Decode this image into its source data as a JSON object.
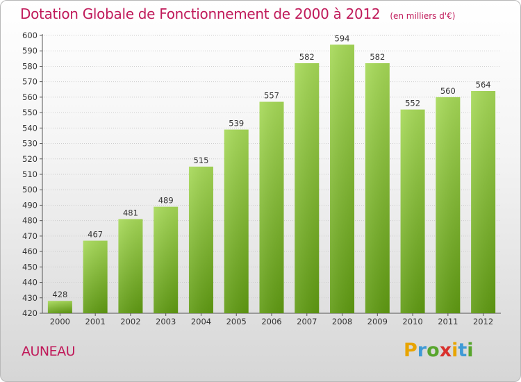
{
  "header": {
    "title": "Dotation Globale de Fonctionnement de 2000 à 2012",
    "unit": "(en milliers d'€)"
  },
  "commune": "AUNEAU",
  "logo": {
    "letters": [
      "P",
      "r",
      "o",
      "x",
      "i",
      "t",
      "i"
    ],
    "colors": [
      "#e8a400",
      "#3f9ad6",
      "#57a52c",
      "#d9302c",
      "#e8a400",
      "#3f9ad6",
      "#57a52c"
    ]
  },
  "colors": {
    "title": "#c01a5a",
    "bar_top": "#a6d957",
    "bar_bottom": "#5f9a12",
    "axis": "#555555",
    "grid": "#cccccc"
  },
  "chart_data": {
    "type": "bar",
    "title": "Dotation Globale de Fonctionnement de 2000 à 2012",
    "subtitle": "(en milliers d'€)",
    "xlabel": "",
    "ylabel": "",
    "categories": [
      "2000",
      "2001",
      "2002",
      "2003",
      "2004",
      "2005",
      "2006",
      "2007",
      "2008",
      "2009",
      "2010",
      "2011",
      "2012"
    ],
    "values": [
      428,
      467,
      481,
      489,
      515,
      539,
      557,
      582,
      594,
      582,
      552,
      560,
      564
    ],
    "ylim": [
      420,
      600
    ],
    "yticks": [
      420,
      430,
      440,
      450,
      460,
      470,
      480,
      490,
      500,
      510,
      520,
      530,
      540,
      550,
      560,
      570,
      580,
      590,
      600
    ],
    "grid": true,
    "data_labels": true
  }
}
